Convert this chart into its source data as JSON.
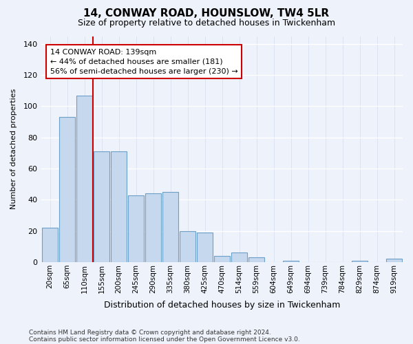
{
  "title": "14, CONWAY ROAD, HOUNSLOW, TW4 5LR",
  "subtitle": "Size of property relative to detached houses in Twickenham",
  "xlabel": "Distribution of detached houses by size in Twickenham",
  "ylabel": "Number of detached properties",
  "bar_labels": [
    "20sqm",
    "65sqm",
    "110sqm",
    "155sqm",
    "200sqm",
    "245sqm",
    "290sqm",
    "335sqm",
    "380sqm",
    "425sqm",
    "470sqm",
    "514sqm",
    "559sqm",
    "604sqm",
    "649sqm",
    "694sqm",
    "739sqm",
    "784sqm",
    "829sqm",
    "874sqm",
    "919sqm"
  ],
  "bar_values": [
    22,
    93,
    107,
    71,
    71,
    43,
    44,
    45,
    20,
    19,
    4,
    6,
    3,
    0,
    1,
    0,
    0,
    0,
    1,
    0,
    2
  ],
  "bar_color": "#c5d8ee",
  "bar_edge_color": "#6b9fc8",
  "background_color": "#eef2fa",
  "grid_color": "#d8dff0",
  "vline_color": "#cc0000",
  "vline_x": 2.5,
  "annotation_text": "14 CONWAY ROAD: 139sqm\n← 44% of detached houses are smaller (181)\n56% of semi-detached houses are larger (230) →",
  "annotation_box_facecolor": "#ffffff",
  "annotation_box_edgecolor": "#cc0000",
  "footer1": "Contains HM Land Registry data © Crown copyright and database right 2024.",
  "footer2": "Contains public sector information licensed under the Open Government Licence v3.0.",
  "ylim": [
    0,
    145
  ],
  "yticks": [
    0,
    20,
    40,
    60,
    80,
    100,
    120,
    140
  ],
  "figsize": [
    6.0,
    5.0
  ],
  "dpi": 100
}
